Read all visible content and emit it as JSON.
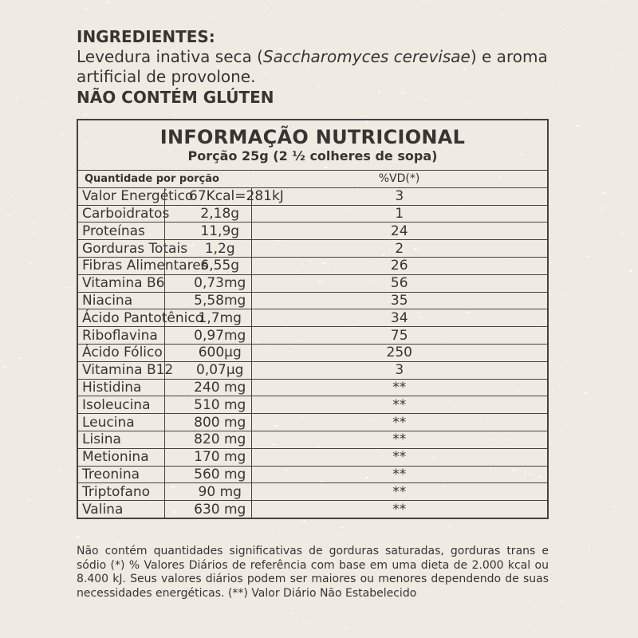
{
  "ingredients": {
    "heading": "INGREDIENTES:",
    "text_before": "Levedura inativa seca (",
    "species": "Saccharomyces cerevisae",
    "text_after": ") e aroma artificial de provolone.",
    "gluten_notice": "NÃO CONTÉM GLÚTEN"
  },
  "nutrition": {
    "title": "INFORMAÇÃO NUTRICIONAL",
    "portion": "Porção 25g (2 ½  colheres de sopa)",
    "header_quantity": "Quantidade por porção",
    "header_vd": "%VD(*)",
    "rows": [
      {
        "name": "Valor Energético",
        "amount": "67Kcal=281kJ",
        "vd": "3"
      },
      {
        "name": "Carboidratos",
        "amount": "2,18g",
        "vd": "1"
      },
      {
        "name": "Proteínas",
        "amount": "11,9g",
        "vd": "24"
      },
      {
        "name": "Gorduras Totais",
        "amount": "1,2g",
        "vd": "2"
      },
      {
        "name": "Fibras Alimentares",
        "amount": "6,55g",
        "vd": "26"
      },
      {
        "name": "Vitamina B6",
        "amount": "0,73mg",
        "vd": "56"
      },
      {
        "name": "Niacina",
        "amount": "5,58mg",
        "vd": "35"
      },
      {
        "name": "Ácido Pantotênico",
        "amount": "1,7mg",
        "vd": "34"
      },
      {
        "name": "Riboflavina",
        "amount": "0,97mg",
        "vd": "75"
      },
      {
        "name": "Ácido Fólico",
        "amount": "600µg",
        "vd": "250"
      },
      {
        "name": "Vitamina B12",
        "amount": "0,07µg",
        "vd": "3"
      },
      {
        "name": "Histidina",
        "amount": "240 mg",
        "vd": "**"
      },
      {
        "name": "Isoleucina",
        "amount": "510 mg",
        "vd": "**"
      },
      {
        "name": "Leucina",
        "amount": "800 mg",
        "vd": "**"
      },
      {
        "name": "Lisina",
        "amount": "820 mg",
        "vd": "**"
      },
      {
        "name": "Metionina",
        "amount": "170 mg",
        "vd": "**"
      },
      {
        "name": "Treonina",
        "amount": "560 mg",
        "vd": "**"
      },
      {
        "name": "Triptofano",
        "amount": "90 mg",
        "vd": "**"
      },
      {
        "name": "Valina",
        "amount": "630 mg",
        "vd": "**"
      }
    ],
    "footnote": "Não contém quantidades significativas de gorduras saturadas, gorduras trans e sódio (*) % Valores Diários de referência com base em uma dieta de 2.000 kcal ou 8.400 kJ. Seus valores diários podem ser maiores ou menores dependendo de suas necessidades energéticas. (**) Valor Diário Não Estabelecido"
  },
  "colors": {
    "background": "#efebe3",
    "text": "#3a3332",
    "border": "#4a3f3e"
  }
}
